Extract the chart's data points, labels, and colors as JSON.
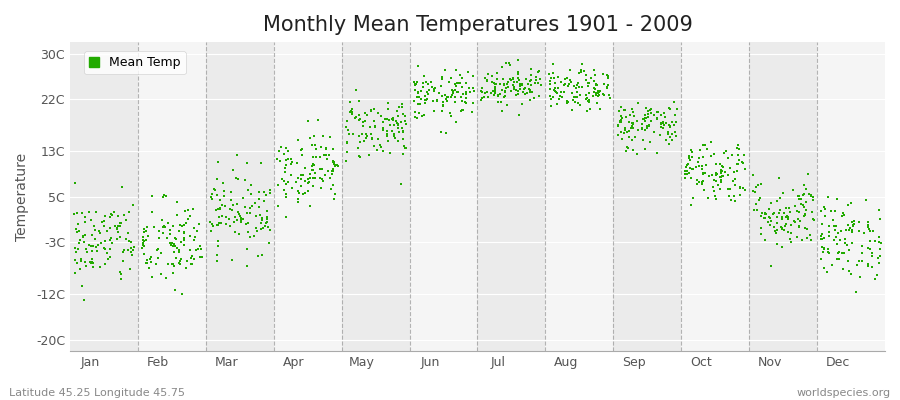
{
  "title": "Monthly Mean Temperatures 1901 - 2009",
  "ylabel": "Temperature",
  "bottom_left_text": "Latitude 45.25 Longitude 45.75",
  "bottom_right_text": "worldspecies.org",
  "yticks": [
    -20,
    -12,
    -3,
    5,
    13,
    22,
    30
  ],
  "ytick_labels": [
    "-20C",
    "-12C",
    "-3C",
    "5C",
    "13C",
    "22C",
    "30C"
  ],
  "ylim": [
    -22,
    32
  ],
  "month_labels": [
    "Jan",
    "Feb",
    "Mar",
    "Apr",
    "May",
    "Jun",
    "Jul",
    "Aug",
    "Sep",
    "Oct",
    "Nov",
    "Dec"
  ],
  "dot_color": "#22aa00",
  "dot_size": 3,
  "background_color": "#ffffff",
  "title_fontsize": 15,
  "axis_fontsize": 10,
  "tick_fontsize": 9,
  "legend_fontsize": 9,
  "monthly_means": [
    -3.0,
    -3.5,
    2.5,
    10.0,
    17.0,
    22.5,
    24.5,
    23.5,
    17.5,
    9.5,
    2.0,
    -2.5
  ],
  "monthly_stds": [
    3.8,
    4.0,
    3.5,
    3.2,
    2.8,
    2.2,
    1.8,
    1.8,
    2.2,
    2.8,
    3.2,
    3.5
  ],
  "n_years": 109,
  "seed": 42,
  "band_colors": [
    "#ebebeb",
    "#f5f5f5"
  ],
  "dashed_line_color": "#888888",
  "hline_color": "#ffffff"
}
